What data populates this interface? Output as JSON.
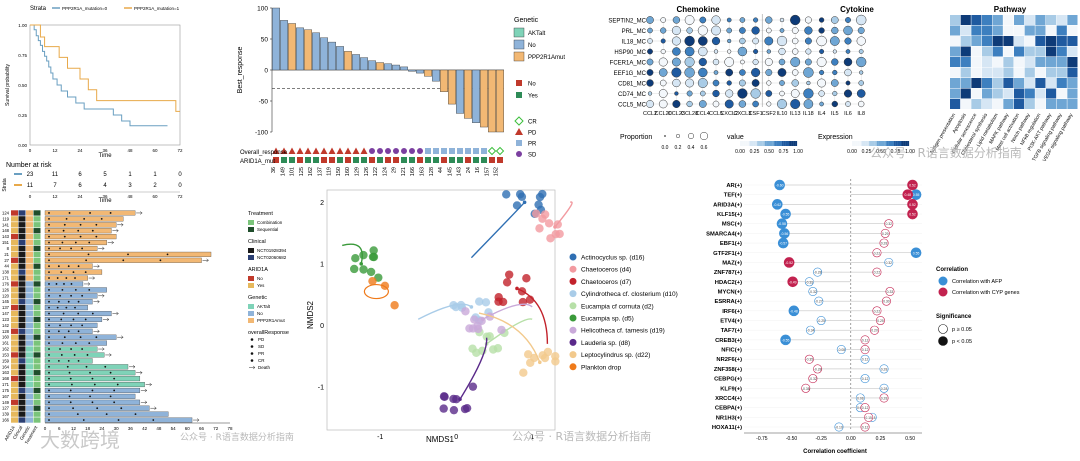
{
  "km": {
    "legend_title": "Strata",
    "legend_items": [
      {
        "label": "PPP2R1A_mutation=0",
        "color": "#6a9fc1"
      },
      {
        "label": "PPP2R1A_mutation=1",
        "color": "#e8a94a"
      }
    ],
    "ylabel": "Survival probability",
    "xlabel": "Time",
    "yticks": [
      "0.00",
      "0.25",
      "0.50",
      "0.75",
      "1.00"
    ],
    "xticks": [
      "0",
      "12",
      "24",
      "36",
      "48",
      "60",
      "72"
    ],
    "risk_title": "Number at risk",
    "risk_strata_label": "Strata",
    "risk_rows": [
      [
        "23",
        "11",
        "6",
        "5",
        "1",
        "1",
        "0"
      ],
      [
        "11",
        "7",
        "6",
        "4",
        "3",
        "2",
        "0"
      ]
    ],
    "risk_xlabel": "Time"
  },
  "waterfall": {
    "ylabel": "Best_response",
    "yticks": [
      "100",
      "50",
      "0",
      "-50",
      "-100"
    ],
    "legend_title": "Genetic",
    "legend_items": [
      {
        "label": "AKTalt",
        "color": "#7fd3b8"
      },
      {
        "label": "No",
        "color": "#8fb3d9"
      },
      {
        "label": "PPP2R1Amut",
        "color": "#f2b874"
      }
    ],
    "resp_legend": [
      {
        "label": "CR",
        "color": "#3cbf3c",
        "shape": "diamond"
      },
      {
        "label": "PD",
        "color": "#c0392b",
        "shape": "triangle"
      },
      {
        "label": "PR",
        "color": "#8fb3d9",
        "shape": "square"
      },
      {
        "label": "SD",
        "color": "#7b3fa0",
        "shape": "circle"
      }
    ],
    "arid_legend": [
      {
        "label": "No",
        "color": "#c0392b"
      },
      {
        "label": "Yes",
        "color": "#2e8b57"
      }
    ],
    "row1_label": "Overall_response",
    "row2_label": "ARID1A_mut",
    "sample_ids": [
      "36",
      "149",
      "101",
      "125",
      "162",
      "137",
      "119",
      "150",
      "160",
      "129",
      "126",
      "122",
      "124",
      "29",
      "121",
      "166",
      "163",
      "128",
      "44",
      "145",
      "143",
      "24",
      "16",
      "157",
      "152"
    ]
  },
  "bubble": {
    "rows": [
      "SEPTIN2_MC",
      "PRL_MC",
      "IL18_MC",
      "HSP90_MC",
      "FCER1A_MC",
      "EEF1G_MC",
      "CD81_MC",
      "CD74_MC",
      "CCL5_MC"
    ],
    "cols": [
      "CCL2",
      "CCL20",
      "CCL23",
      "CCL28",
      "CCL4",
      "CCL5",
      "CXCL2",
      "CXCL3",
      "CSF1",
      "CSF2",
      "IL10",
      "IL13",
      "IL18",
      "IL4",
      "IL5",
      "IL6",
      "IL8"
    ],
    "chemokine_title": "Chemokine",
    "cytokine_title": "Cytokine",
    "pathway_title": "Pathway",
    "pathways": [
      "Antigen presentation",
      "Apoptosis",
      "Cellular senescence",
      "Cholesterol synthesis",
      "Lipid metabolism",
      "MAPK pathway",
      "Mast cell activation",
      "Notch pathway",
      "NFkB regulation",
      "PI3K-AKT pathway",
      "TGFB signaling pathway",
      "VEGF signaling pathway"
    ],
    "proportion_label": "Proportion",
    "proportion_ticks": [
      "0.0",
      "0.2",
      "0.4",
      "0.6"
    ],
    "value_label": "value",
    "value_ticks": [
      "0.00",
      "0.25",
      "0.50",
      "0.75",
      "1.00"
    ],
    "expression_label": "Expression",
    "expression_ticks": [
      "0.00",
      "0.25",
      "0.50",
      "0.75",
      "1.00"
    ]
  },
  "swimmer": {
    "labels": [
      "124",
      "119",
      "141",
      "148",
      "143",
      "151",
      "8",
      "21",
      "27",
      "44",
      "138",
      "171",
      "176",
      "126",
      "120",
      "145",
      "137",
      "147",
      "123",
      "142",
      "128",
      "160",
      "161",
      "162",
      "153",
      "159",
      "164",
      "163",
      "168",
      "171",
      "175",
      "167",
      "149",
      "127",
      "139",
      "166"
    ],
    "axis_ticks": [
      "0",
      "6",
      "12",
      "18",
      "24",
      "30",
      "36",
      "42",
      "48",
      "54",
      "60",
      "66",
      "72",
      "78"
    ],
    "legend_treatment_title": "Treatment",
    "legend_treatment": [
      {
        "label": "Combination",
        "color": "#7ac47a"
      },
      {
        "label": "Sequential",
        "color": "#1f4d2b"
      }
    ],
    "legend_clinical_title": "Clinical",
    "legend_clinical": [
      {
        "label": "NCT01928394",
        "color": "#1a1a1a"
      },
      {
        "label": "NCT02060682",
        "color": "#2b3f73"
      }
    ],
    "legend_arid_title": "ARID1A",
    "legend_arid": [
      {
        "label": "No",
        "color": "#c0392b"
      },
      {
        "label": "Yes",
        "color": "#e6b85c"
      }
    ],
    "legend_genetic_title": "Genetic",
    "legend_genetic": [
      {
        "label": "AKTalt",
        "color": "#7fd3b8"
      },
      {
        "label": "No",
        "color": "#8fb3d9"
      },
      {
        "label": "PPP2R1Amut",
        "color": "#f2b874"
      }
    ],
    "legend_response_title": "overallResponse",
    "legend_response": [
      "PD",
      "SD",
      "PR",
      "CR",
      "Death"
    ],
    "bottom_labels": [
      "ARID1A",
      "Clinical",
      "Genetic",
      "Treatment"
    ]
  },
  "nmds": {
    "xlabel": "NMDS1",
    "ylabel": "NMDS2",
    "xticks": [
      "-1",
      "0",
      "1"
    ],
    "yticks": [
      "2",
      "1",
      "0",
      "-1"
    ],
    "legend": [
      {
        "label": "Actinocyclus sp. (d16)",
        "color": "#2f6fb3"
      },
      {
        "label": "Chaetoceros (d4)",
        "color": "#f29aa0"
      },
      {
        "label": "Chaetoceros (d7)",
        "color": "#c2222b"
      },
      {
        "label": "Cylindrotheca cf. closterium (d10)",
        "color": "#a9cce8"
      },
      {
        "label": "Eucampia cf cornuta (d2)",
        "color": "#b7e0a8"
      },
      {
        "label": "Eucampia sp. (d5)",
        "color": "#3a9a3a"
      },
      {
        "label": "Helicotheca cf. tamesis (d19)",
        "color": "#c9a9d9"
      },
      {
        "label": "Lauderia sp. (d8)",
        "color": "#5a2a8a"
      },
      {
        "label": "Leptocylindrus sp. (d22)",
        "color": "#f2c98c"
      },
      {
        "label": "Plankton drop",
        "color": "#ef7a1a"
      }
    ]
  },
  "corr": {
    "genes": [
      "AR(+)",
      "TEF(+)",
      "ARID3A(+)",
      "KLF15(+)",
      "MSC(+)",
      "SMARCA4(+)",
      "EBF1(+)",
      "GTF2F1(+)",
      "MAZ(+)",
      "ZNF787(+)",
      "HDAC2(+)",
      "MYCN(+)",
      "ESRRA(+)",
      "IRF6(+)",
      "ETV4(+)",
      "TAF7(+)",
      "CREB3(+)",
      "NFIC(+)",
      "NR2F6(+)",
      "ZNF358(+)",
      "CEBPG(+)",
      "KLF9(+)",
      "XRCC4(+)",
      "CEBPA(+)",
      "NR1H3(+)",
      "HOXA11(+)"
    ],
    "xticks": [
      "-0.75",
      "-0.50",
      "-0.25",
      "0.00",
      "0.25",
      "0.50"
    ],
    "xlabel": "Correlation coefficient",
    "legend_corr_title": "Correlation",
    "legend_corr": [
      {
        "label": "Correlation with AFP",
        "color": "#3a8fd6"
      },
      {
        "label": "Correlation with CYP genes",
        "color": "#c2224f"
      }
    ],
    "legend_sig_title": "Significance",
    "legend_sig": [
      "p ≥ 0.05",
      "p < 0.05"
    ]
  },
  "watermarks": [
    "公众号 · R语言数据分析指南",
    "大数跨境",
    "公众号 · R语言数据分析指南",
    "公众号 · R语言数据分析指南"
  ]
}
